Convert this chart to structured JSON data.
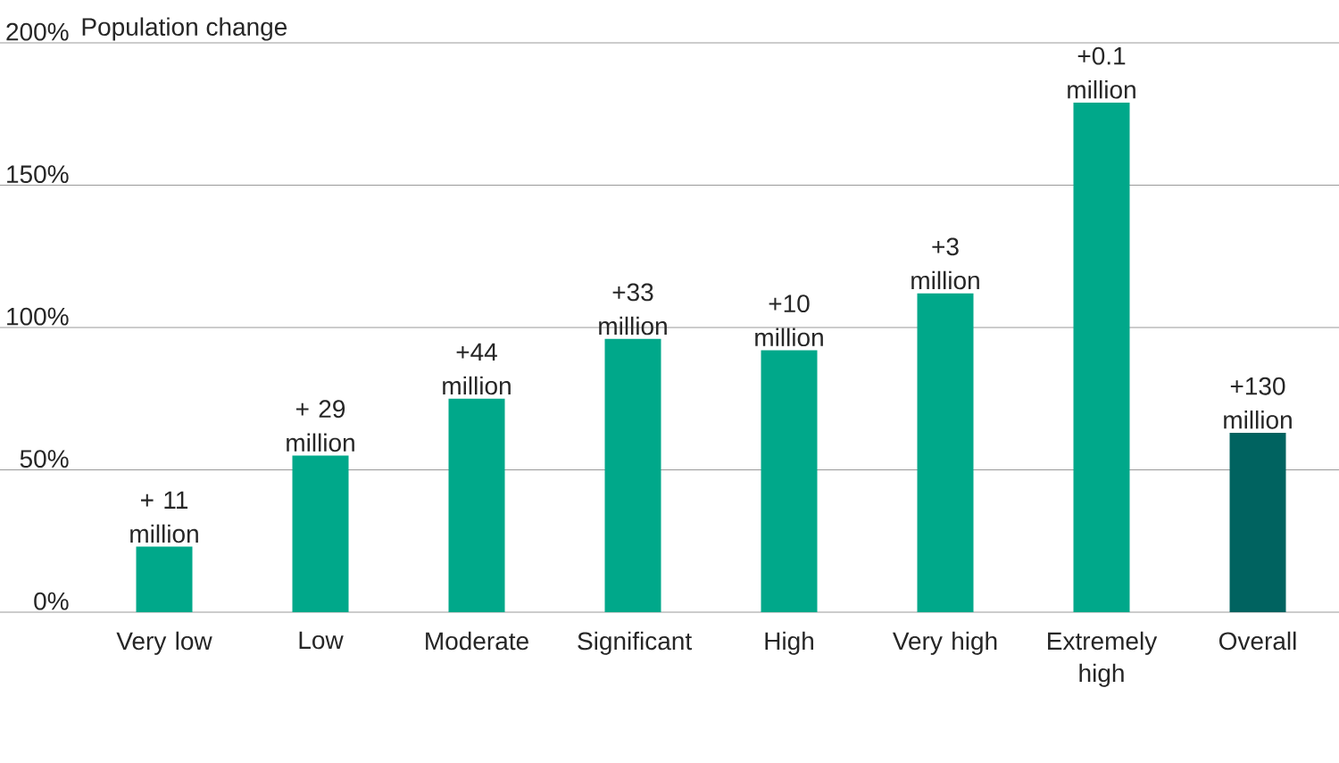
{
  "chart_data": {
    "type": "bar",
    "title": "Population change",
    "categories": [
      "Very low",
      "Low",
      "Moderate",
      "Significant",
      "High",
      "Very high",
      "Extremely high",
      "Overall"
    ],
    "values": [
      23,
      55,
      75,
      96,
      92,
      112,
      179,
      63
    ],
    "colors": [
      "#00a88a",
      "#00a88a",
      "#00a88a",
      "#00a88a",
      "#00a88a",
      "#00a88a",
      "#00a88a",
      "#006360"
    ],
    "annotations": [
      {
        "text": "+ 11 million",
        "x": "Very low",
        "y": 23
      },
      {
        "text": "+ 29 million",
        "x": "Low",
        "y": 55
      },
      {
        "text": "+44 million",
        "x": "Moderate",
        "y": 75
      },
      {
        "text": "+33 million",
        "x": "Significant",
        "y": 96
      },
      {
        "text": "+10 million",
        "x": "High",
        "y": 92
      },
      {
        "text": "+3 million",
        "x": "Very high",
        "y": 112
      },
      {
        "text": "+0.1 million",
        "x": "Extremely high",
        "y": 179
      },
      {
        "text": "+130 million",
        "x": "Overall",
        "y": 63
      }
    ],
    "ylim": [
      0,
      200
    ],
    "yticks": [
      {
        "value": 0,
        "label": "0%"
      },
      {
        "value": 50,
        "label": "50%"
      },
      {
        "value": 100,
        "label": "100%"
      },
      {
        "value": 150,
        "label": "150%"
      },
      {
        "value": 200,
        "label": "200%"
      }
    ],
    "grid": "y"
  }
}
